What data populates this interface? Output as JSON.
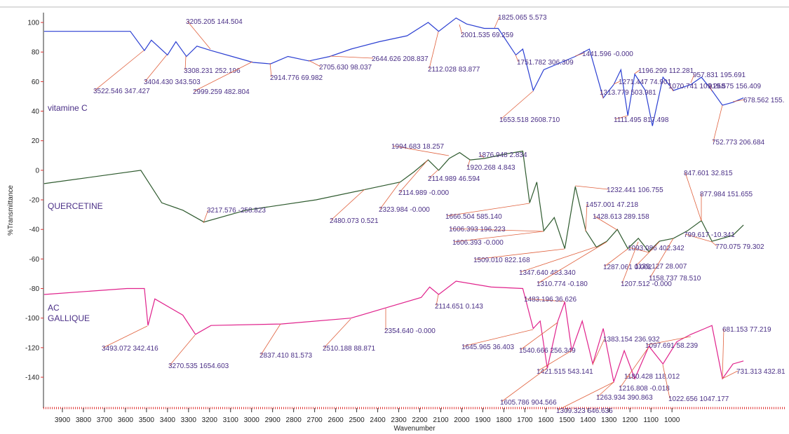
{
  "chart_data": {
    "type": "line",
    "x_label": "Wavenumber",
    "y_label": "%Transmittance",
    "xlim": [
      3990,
      460
    ],
    "ylim": [
      -160,
      106
    ],
    "xticks": [
      3900,
      3800,
      3700,
      3600,
      3500,
      3400,
      3300,
      3200,
      3100,
      3000,
      2900,
      2800,
      2700,
      2600,
      2500,
      2400,
      2300,
      2200,
      2100,
      2000,
      1900,
      1800,
      1700,
      1600,
      1500,
      1400,
      1300,
      1200,
      1100,
      1000
    ],
    "yticks": [
      100,
      80,
      60,
      40,
      20,
      0,
      -20,
      -40,
      -60,
      -80,
      -100,
      -120,
      -140
    ],
    "series": [
      {
        "name": "vitamine C",
        "color": "#2b3fd2",
        "x": [
          3987,
          3577,
          3510,
          3477,
          3400,
          3360,
          3310,
          3260,
          3193,
          3093,
          2993,
          2910,
          2827,
          2727,
          2627,
          2527,
          2393,
          2260,
          2160,
          2110,
          2027,
          1977,
          1893,
          1827,
          1743,
          1710,
          1660,
          1610,
          1527,
          1460,
          1393,
          1327,
          1277,
          1243,
          1210,
          1177,
          1127,
          1093,
          1043,
          993,
          910,
          860,
          810,
          760,
          710,
          660
        ],
        "values": [
          94,
          94,
          81,
          88,
          78,
          87,
          77,
          84,
          81,
          77,
          73,
          72,
          77,
          74,
          77,
          82,
          87,
          91,
          100,
          94,
          103,
          99,
          96,
          96,
          78,
          82,
          54,
          68,
          73,
          77,
          82,
          49,
          58,
          68,
          37,
          65,
          54,
          30,
          63,
          54,
          58,
          63,
          54,
          44,
          46,
          49
        ]
      },
      {
        "name": "QUERCETINE",
        "color": "#2e5a2e",
        "x": [
          3987,
          3527,
          3427,
          3327,
          3227,
          3027,
          2693,
          2460,
          2293,
          2227,
          2160,
          2110,
          2060,
          2010,
          1960,
          1893,
          1793,
          1710,
          1677,
          1643,
          1610,
          1560,
          1510,
          1460,
          1410,
          1360,
          1310,
          1260,
          1210,
          1160,
          1110,
          1060,
          993,
          927,
          860,
          810,
          760,
          710,
          660
        ],
        "values": [
          -9,
          0,
          -22,
          -27,
          -35,
          -27,
          -20,
          -13,
          -8,
          -1,
          7,
          0,
          8,
          12,
          7,
          8,
          11,
          13,
          -22,
          -8,
          -41,
          -32,
          -53,
          -11,
          -41,
          -52,
          -48,
          -40,
          -53,
          -46,
          -55,
          -48,
          -46,
          -41,
          -34,
          -48,
          -46,
          -44,
          -37
        ]
      },
      {
        "name": "AC GALLIQUE",
        "color": "#e0228c",
        "x": [
          3987,
          3593,
          3510,
          3493,
          3460,
          3327,
          3267,
          3193,
          2860,
          2527,
          2360,
          2193,
          2153,
          2110,
          2027,
          1860,
          1710,
          1660,
          1627,
          1593,
          1543,
          1510,
          1477,
          1427,
          1377,
          1327,
          1277,
          1227,
          1177,
          1110,
          1043,
          977,
          910,
          843,
          810,
          760,
          710,
          660
        ],
        "values": [
          -84,
          -80,
          -80,
          -105,
          -87,
          -98,
          -111,
          -105,
          -104,
          -100,
          -93,
          -86,
          -79,
          -84,
          -75,
          -79,
          -80,
          -107,
          -102,
          -134,
          -102,
          -89,
          -122,
          -102,
          -131,
          -107,
          -143,
          -122,
          -141,
          -119,
          -131,
          -116,
          -111,
          -107,
          -105,
          -141,
          -131,
          -129
        ]
      }
    ],
    "annotations": [
      "3522.546  347.427",
      "3404.430  343.503",
      "3308.231  252.196",
      "3205.205  144.504",
      "2999.259  482.804",
      "2914.776  69.982",
      "2705.630  98.037",
      "2644.626  208.837",
      "2112.028  83.877",
      "2001.535  69.259",
      "1825.065  5.573",
      "1751.782  306.309",
      "1441.596  -0.000",
      "1653.518  2608.710",
      "1196.299  112.281",
      "1271.447  74.901",
      "1313.779  503.981",
      "1070.741  109.258",
      "957.831  195.691",
      "919.575  156.409",
      "1111.495  817.498",
      "678.562  155.",
      "752.773  206.684",
      "1994.683  18.257",
      "1876.948  2.834",
      "1920.268  4.843",
      "2114.989  46.594",
      "2114.989  -0.000",
      "2480.073  0.521",
      "2323.984  -0.000",
      "3217.576  -258.823",
      "1666.504  585.140",
      "1606.393  196.223",
      "1606.393  -0.000",
      "1509.010  822.168",
      "1347.640  483.340",
      "1310.774  -0.180",
      "1232.441  106.755",
      "1457.001  47.218",
      "1428.613  289.158",
      "1287.061  0.002",
      "1207.512  -0.000",
      "1093.086  402.342",
      "1139.127  28.007",
      "1158.737  78.510",
      "847.601  32.815",
      "877.984  151.655",
      "799.617  -10.341",
      "770.075  79.302",
      "1483.196  36.626",
      "2114.651  0.143",
      "2354.640  -0.000",
      "1645.965  36.403",
      "1540.666  256.349",
      "1383.154  236.932",
      "1097.691  58.239",
      "681.153  77.219",
      "3493.072  342.416",
      "2837.410  81.573",
      "2510.188  88.871",
      "3270.535  1654.603",
      "1421.515  543.141",
      "1180.428  118.012",
      "731.313  432.81",
      "1216.808  -0.018",
      "1263.934  390.863",
      "1022.656  1047.177",
      "1605.786  904.566",
      "1309.323  646.636"
    ]
  }
}
